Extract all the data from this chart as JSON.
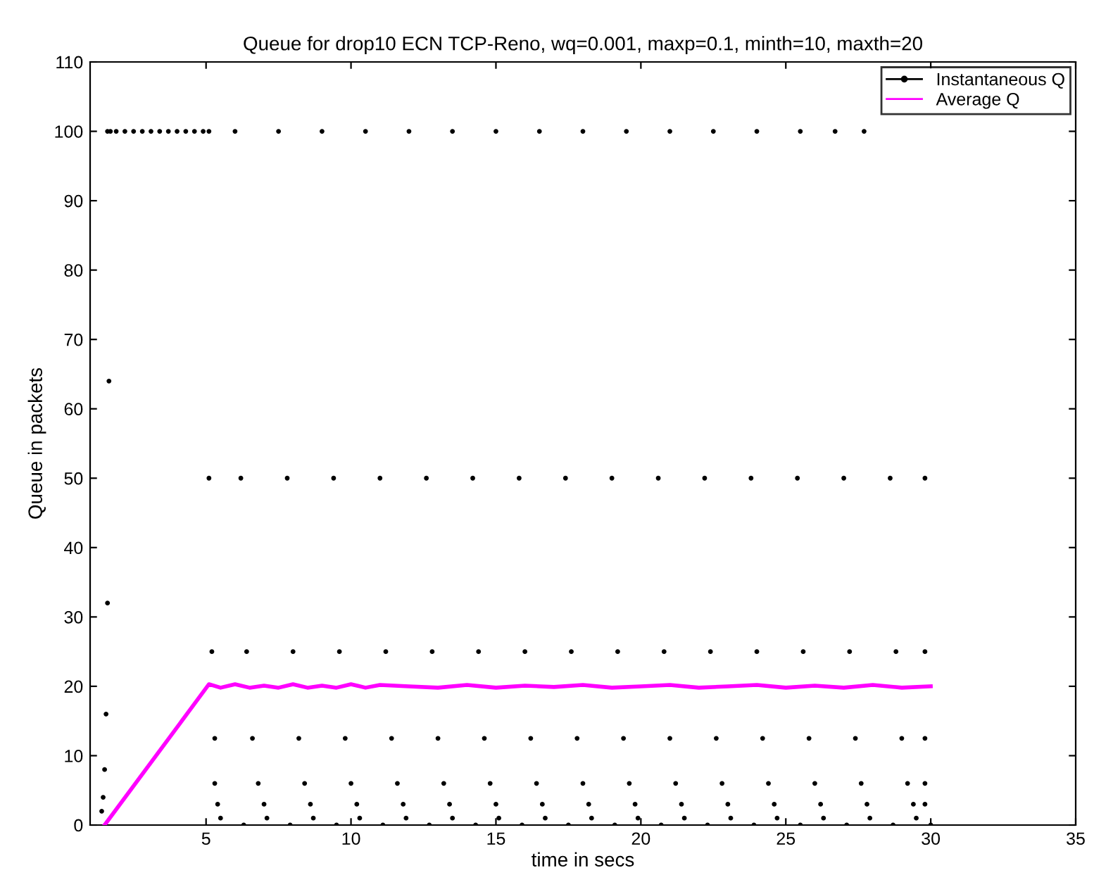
{
  "chart_data": {
    "type": "scatter",
    "title": "Queue for drop10 ECN TCP-Reno, wq=0.001, maxp=0.1, minth=10, maxth=20",
    "xlabel": "time in secs",
    "ylabel": "Queue in packets",
    "xlim": [
      1,
      35
    ],
    "xticks": [
      5,
      10,
      15,
      20,
      25,
      30,
      35
    ],
    "ylim": [
      0,
      110
    ],
    "yticks": [
      0,
      10,
      20,
      30,
      40,
      50,
      60,
      70,
      80,
      90,
      100,
      110
    ],
    "grid": false,
    "legend": "top right",
    "series": [
      {
        "name": "Instantaneous Q",
        "marker": "circle",
        "color": "#000000",
        "x": [
          1.4,
          1.45,
          1.5,
          1.55,
          1.6,
          1.65,
          1.7,
          1.6,
          1.9,
          2.2,
          2.5,
          2.8,
          3.1,
          3.4,
          3.7,
          4.0,
          4.3,
          4.6,
          4.9,
          5.1,
          6.0,
          7.5,
          9.0,
          10.5,
          12.0,
          13.5,
          15.0,
          16.5,
          18.0,
          19.5,
          21.0,
          22.5,
          24.0,
          25.5,
          26.7,
          27.7,
          5.1,
          6.2,
          7.8,
          9.4,
          11.0,
          12.6,
          14.2,
          15.8,
          17.4,
          19.0,
          20.6,
          22.2,
          23.8,
          25.4,
          27.0,
          28.6,
          29.8,
          5.2,
          6.4,
          8.0,
          9.6,
          11.2,
          12.8,
          14.4,
          16.0,
          17.6,
          19.2,
          20.8,
          22.4,
          24.0,
          25.6,
          27.2,
          28.8,
          29.8,
          5.3,
          6.6,
          8.2,
          9.8,
          11.4,
          13.0,
          14.6,
          16.2,
          17.8,
          19.4,
          21.0,
          22.6,
          24.2,
          25.8,
          27.4,
          29.0,
          29.8,
          5.3,
          6.8,
          8.4,
          10.0,
          11.6,
          13.2,
          14.8,
          16.4,
          18.0,
          19.6,
          21.2,
          22.8,
          24.4,
          26.0,
          27.6,
          29.2,
          29.8,
          5.4,
          7.0,
          8.6,
          10.2,
          11.8,
          13.4,
          15.0,
          16.6,
          18.2,
          19.8,
          21.4,
          23.0,
          24.6,
          26.2,
          27.8,
          29.4,
          29.8,
          5.5,
          6.3,
          7.1,
          7.9,
          8.7,
          9.5,
          10.3,
          11.1,
          11.9,
          12.7,
          13.5,
          14.3,
          15.1,
          15.9,
          16.7,
          17.5,
          18.3,
          19.1,
          19.9,
          20.7,
          21.5,
          22.3,
          23.1,
          23.9,
          24.7,
          25.5,
          26.3,
          27.1,
          27.9,
          28.7,
          29.5,
          30.0
        ],
        "values": [
          2,
          4,
          8,
          16,
          32,
          64,
          100,
          100,
          100,
          100,
          100,
          100,
          100,
          100,
          100,
          100,
          100,
          100,
          100,
          100,
          100,
          100,
          100,
          100,
          100,
          100,
          100,
          100,
          100,
          100,
          100,
          100,
          100,
          100,
          100,
          100,
          50,
          50,
          50,
          50,
          50,
          50,
          50,
          50,
          50,
          50,
          50,
          50,
          50,
          50,
          50,
          50,
          50,
          25,
          25,
          25,
          25,
          25,
          25,
          25,
          25,
          25,
          25,
          25,
          25,
          25,
          25,
          25,
          25,
          25,
          12.5,
          12.5,
          12.5,
          12.5,
          12.5,
          12.5,
          12.5,
          12.5,
          12.5,
          12.5,
          12.5,
          12.5,
          12.5,
          12.5,
          12.5,
          12.5,
          12.5,
          6,
          6,
          6,
          6,
          6,
          6,
          6,
          6,
          6,
          6,
          6,
          6,
          6,
          6,
          6,
          6,
          6,
          3,
          3,
          3,
          3,
          3,
          3,
          3,
          3,
          3,
          3,
          3,
          3,
          3,
          3,
          3,
          3,
          3,
          1,
          0,
          1,
          0,
          1,
          0,
          1,
          0,
          1,
          0,
          1,
          0,
          1,
          0,
          1,
          0,
          1,
          0,
          1,
          0,
          1,
          0,
          1,
          0,
          1,
          0,
          1,
          0,
          1,
          0,
          1,
          0
        ]
      },
      {
        "name": "Average Q",
        "type": "line",
        "color": "#ff00ff",
        "x": [
          1.5,
          5.1,
          5.5,
          6.0,
          6.5,
          7.0,
          7.5,
          8.0,
          8.5,
          9.0,
          9.5,
          10.0,
          10.5,
          11.0,
          12.0,
          13.0,
          14.0,
          15.0,
          16.0,
          17.0,
          18.0,
          19.0,
          20.0,
          21.0,
          22.0,
          23.0,
          24.0,
          25.0,
          26.0,
          27.0,
          28.0,
          29.0,
          30.0
        ],
        "values": [
          0,
          20.3,
          19.8,
          20.3,
          19.8,
          20.1,
          19.8,
          20.3,
          19.8,
          20.1,
          19.8,
          20.3,
          19.8,
          20.2,
          20.0,
          19.8,
          20.2,
          19.8,
          20.1,
          19.9,
          20.2,
          19.8,
          20.0,
          20.2,
          19.8,
          20.0,
          20.2,
          19.8,
          20.1,
          19.8,
          20.2,
          19.8,
          20.0
        ]
      }
    ]
  }
}
